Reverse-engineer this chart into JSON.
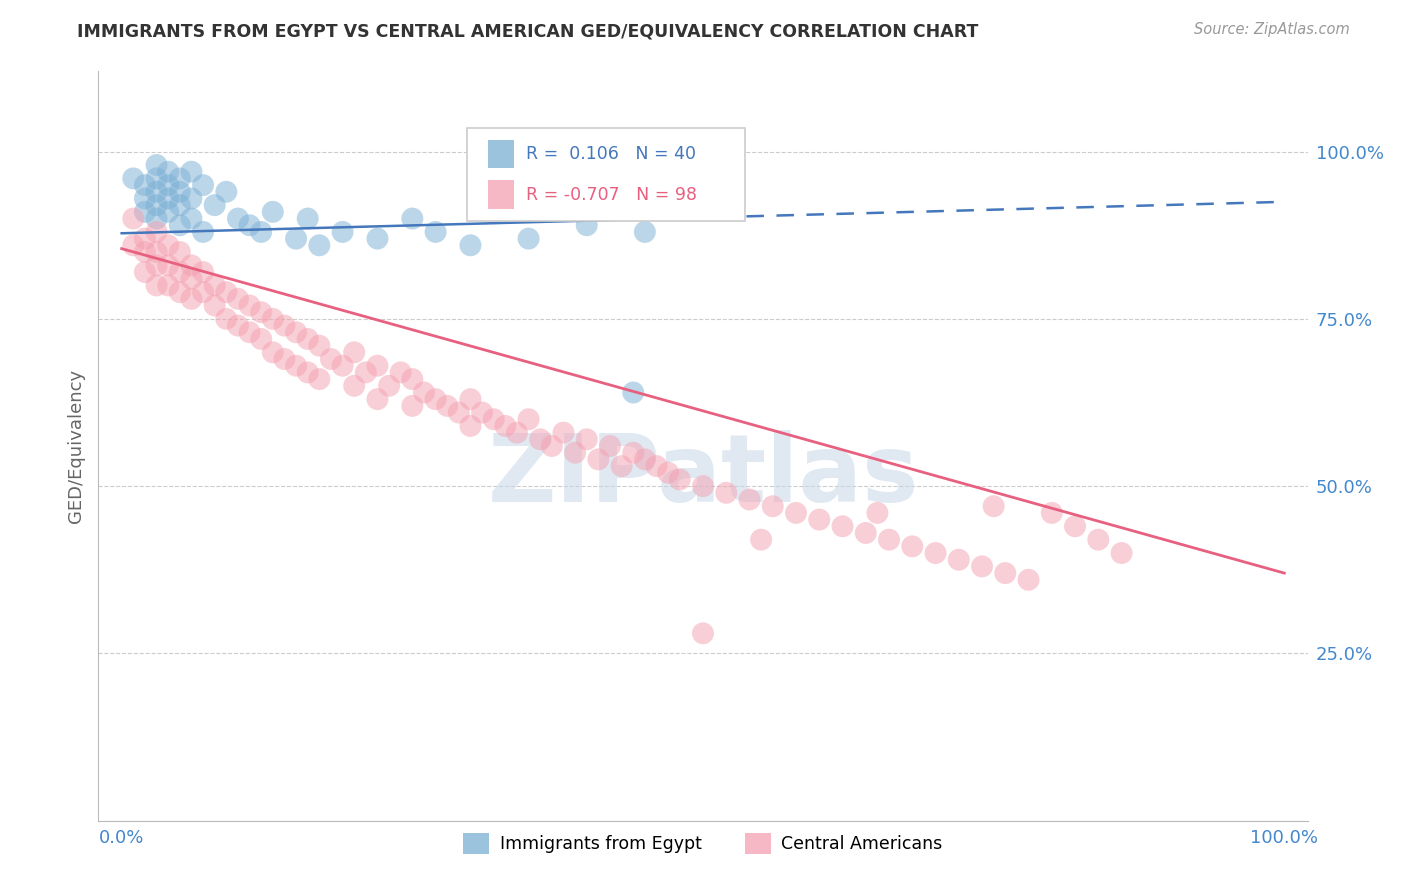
{
  "title": "IMMIGRANTS FROM EGYPT VS CENTRAL AMERICAN GED/EQUIVALENCY CORRELATION CHART",
  "source_text": "Source: ZipAtlas.com",
  "ylabel": "GED/Equivalency",
  "xlim": [
    -0.02,
    1.02
  ],
  "ylim": [
    0.0,
    1.12
  ],
  "yticks": [
    0.0,
    0.25,
    0.5,
    0.75,
    1.0
  ],
  "ytick_labels": [
    "",
    "25.0%",
    "50.0%",
    "75.0%",
    "100.0%"
  ],
  "xticks": [
    0.0,
    1.0
  ],
  "xtick_labels": [
    "0.0%",
    "100.0%"
  ],
  "blue_R": 0.106,
  "blue_N": 40,
  "pink_R": -0.707,
  "pink_N": 98,
  "blue_color": "#7BAFD4",
  "pink_color": "#F4A0B0",
  "blue_line_color": "#4477BB",
  "pink_line_color": "#E86080",
  "blue_line_solid_end": 0.46,
  "blue_line_y0": 0.878,
  "blue_line_y1": 0.925,
  "pink_line_y0": 0.855,
  "pink_line_y1": 0.37,
  "watermark_text": "ZIPatlas",
  "watermark_color": "#C8D8E8",
  "background_color": "#FFFFFF",
  "grid_color": "#CCCCCC",
  "title_color": "#333333",
  "axis_label_color": "#666666",
  "tick_color": "#4488CC",
  "blue_scatter_x": [
    0.01,
    0.02,
    0.02,
    0.02,
    0.03,
    0.03,
    0.03,
    0.03,
    0.03,
    0.04,
    0.04,
    0.04,
    0.04,
    0.05,
    0.05,
    0.05,
    0.05,
    0.06,
    0.06,
    0.06,
    0.07,
    0.07,
    0.08,
    0.09,
    0.1,
    0.11,
    0.12,
    0.13,
    0.15,
    0.16,
    0.17,
    0.19,
    0.22,
    0.25,
    0.27,
    0.3,
    0.35,
    0.4,
    0.44,
    0.45
  ],
  "blue_scatter_y": [
    0.96,
    0.95,
    0.93,
    0.91,
    0.98,
    0.96,
    0.94,
    0.92,
    0.9,
    0.97,
    0.95,
    0.93,
    0.91,
    0.96,
    0.94,
    0.92,
    0.89,
    0.97,
    0.93,
    0.9,
    0.95,
    0.88,
    0.92,
    0.94,
    0.9,
    0.89,
    0.88,
    0.91,
    0.87,
    0.9,
    0.86,
    0.88,
    0.87,
    0.9,
    0.88,
    0.86,
    0.87,
    0.89,
    0.64,
    0.88
  ],
  "pink_scatter_x": [
    0.01,
    0.01,
    0.02,
    0.02,
    0.02,
    0.03,
    0.03,
    0.03,
    0.03,
    0.04,
    0.04,
    0.04,
    0.05,
    0.05,
    0.05,
    0.06,
    0.06,
    0.06,
    0.07,
    0.07,
    0.08,
    0.08,
    0.09,
    0.09,
    0.1,
    0.1,
    0.11,
    0.11,
    0.12,
    0.12,
    0.13,
    0.13,
    0.14,
    0.14,
    0.15,
    0.15,
    0.16,
    0.16,
    0.17,
    0.17,
    0.18,
    0.19,
    0.2,
    0.2,
    0.21,
    0.22,
    0.22,
    0.23,
    0.24,
    0.25,
    0.25,
    0.26,
    0.27,
    0.28,
    0.29,
    0.3,
    0.3,
    0.31,
    0.32,
    0.33,
    0.34,
    0.35,
    0.36,
    0.37,
    0.38,
    0.39,
    0.4,
    0.41,
    0.42,
    0.43,
    0.44,
    0.45,
    0.46,
    0.47,
    0.48,
    0.5,
    0.52,
    0.54,
    0.56,
    0.58,
    0.6,
    0.62,
    0.64,
    0.66,
    0.68,
    0.7,
    0.72,
    0.74,
    0.76,
    0.78,
    0.8,
    0.82,
    0.84,
    0.86,
    0.5,
    0.55,
    0.65,
    0.75
  ],
  "pink_scatter_y": [
    0.9,
    0.86,
    0.87,
    0.85,
    0.82,
    0.88,
    0.85,
    0.83,
    0.8,
    0.86,
    0.83,
    0.8,
    0.85,
    0.82,
    0.79,
    0.83,
    0.81,
    0.78,
    0.82,
    0.79,
    0.8,
    0.77,
    0.79,
    0.75,
    0.78,
    0.74,
    0.77,
    0.73,
    0.76,
    0.72,
    0.75,
    0.7,
    0.74,
    0.69,
    0.73,
    0.68,
    0.72,
    0.67,
    0.71,
    0.66,
    0.69,
    0.68,
    0.7,
    0.65,
    0.67,
    0.68,
    0.63,
    0.65,
    0.67,
    0.66,
    0.62,
    0.64,
    0.63,
    0.62,
    0.61,
    0.63,
    0.59,
    0.61,
    0.6,
    0.59,
    0.58,
    0.6,
    0.57,
    0.56,
    0.58,
    0.55,
    0.57,
    0.54,
    0.56,
    0.53,
    0.55,
    0.54,
    0.53,
    0.52,
    0.51,
    0.5,
    0.49,
    0.48,
    0.47,
    0.46,
    0.45,
    0.44,
    0.43,
    0.42,
    0.41,
    0.4,
    0.39,
    0.38,
    0.37,
    0.36,
    0.46,
    0.44,
    0.42,
    0.4,
    0.28,
    0.42,
    0.46,
    0.47
  ]
}
